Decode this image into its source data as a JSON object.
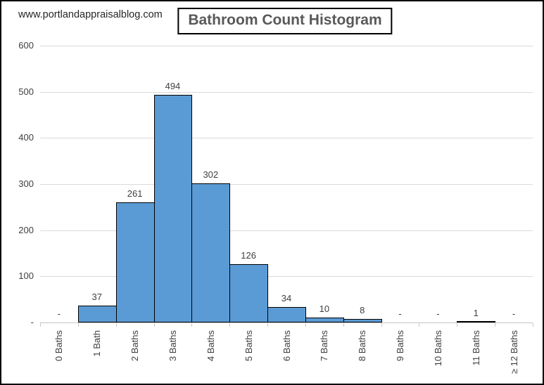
{
  "watermark": "www.portlandappraisalblog.com",
  "title": "Bathroom Count Histogram",
  "chart_data": {
    "type": "bar",
    "title": "Bathroom Count Histogram",
    "categories": [
      "0 Baths",
      "1 Bath",
      "2 Baths",
      "3 Baths",
      "4 Baths",
      "5 Baths",
      "6 Baths",
      "7 Baths",
      "8 Baths",
      "9 Baths",
      "10 Baths",
      "11 Baths",
      "≥ 12 Baths"
    ],
    "values": [
      0,
      37,
      261,
      494,
      302,
      126,
      34,
      10,
      8,
      0,
      0,
      1,
      0
    ],
    "value_labels": [
      "-",
      "37",
      "261",
      "494",
      "302",
      "126",
      "34",
      "10",
      "8",
      "-",
      "-",
      "1",
      "-"
    ],
    "xlabel": "",
    "ylabel": "",
    "ylim": [
      0,
      600
    ],
    "y_ticks": [
      600,
      500,
      400,
      300,
      200,
      100,
      0
    ],
    "y_tick_labels": [
      "600",
      "500",
      "400",
      "300",
      "200",
      "100",
      "-"
    ],
    "grid": true,
    "legend": false,
    "x_label_rotation": 90,
    "colors": {
      "bar_fill": "#5b9bd5",
      "bar_border": "#000000",
      "gridline": "#d9d9d9",
      "axis": "#c6c6c6",
      "text": "#404040",
      "title_text": "#595959"
    }
  }
}
